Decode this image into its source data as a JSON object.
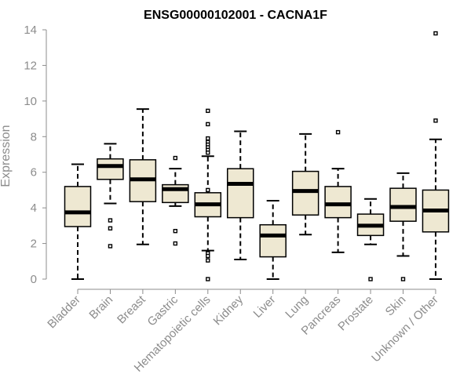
{
  "chart_data": {
    "type": "boxplot",
    "title": "ENSG00000102001 - CACNA1F",
    "xlabel": "",
    "ylabel": "Expression",
    "ylim": [
      0,
      14
    ],
    "yticks": [
      "0",
      "2",
      "4",
      "6",
      "8",
      "10",
      "12",
      "14"
    ],
    "box_color": "#eee8d2",
    "categories": [
      "Bladder",
      "Brain",
      "Breast",
      "Gastric",
      "Hematopoietic cells",
      "Kidney",
      "Liver",
      "Lung",
      "Pancreas",
      "Prostate",
      "Skin",
      "Unknown / Other"
    ],
    "boxes": [
      {
        "min": 0.0,
        "q1": 2.95,
        "median": 3.75,
        "q3": 5.2,
        "max": 6.45,
        "outliers": []
      },
      {
        "min": 4.25,
        "q1": 5.6,
        "median": 6.35,
        "q3": 6.75,
        "max": 7.6,
        "outliers": [
          3.3,
          2.85,
          1.85
        ]
      },
      {
        "min": 1.95,
        "q1": 4.35,
        "median": 5.6,
        "q3": 6.7,
        "max": 9.55,
        "outliers": []
      },
      {
        "min": 4.1,
        "q1": 4.3,
        "median": 5.05,
        "q3": 5.3,
        "max": 6.2,
        "outliers": [
          6.8,
          2.7,
          2.0
        ]
      },
      {
        "min": 1.6,
        "q1": 3.5,
        "median": 4.2,
        "q3": 4.85,
        "max": 6.9,
        "outliers": [
          9.45,
          8.7,
          7.9,
          7.7,
          7.55,
          7.4,
          7.25,
          7.1,
          5.0,
          1.45,
          1.3,
          1.05,
          0.0
        ]
      },
      {
        "min": 1.1,
        "q1": 3.45,
        "median": 5.35,
        "q3": 6.2,
        "max": 8.3,
        "outliers": []
      },
      {
        "min": 0.0,
        "q1": 1.25,
        "median": 2.45,
        "q3": 3.05,
        "max": 4.4,
        "outliers": []
      },
      {
        "min": 2.5,
        "q1": 3.6,
        "median": 4.95,
        "q3": 6.05,
        "max": 8.15,
        "outliers": []
      },
      {
        "min": 1.5,
        "q1": 3.45,
        "median": 4.2,
        "q3": 5.2,
        "max": 6.2,
        "outliers": [
          8.25
        ]
      },
      {
        "min": 1.95,
        "q1": 2.45,
        "median": 3.0,
        "q3": 3.65,
        "max": 4.5,
        "outliers": [
          0.0
        ]
      },
      {
        "min": 1.3,
        "q1": 3.25,
        "median": 4.05,
        "q3": 5.1,
        "max": 5.95,
        "outliers": [
          0.0
        ]
      },
      {
        "min": 0.0,
        "q1": 2.65,
        "median": 3.85,
        "q3": 5.0,
        "max": 7.85,
        "outliers": [
          13.8,
          8.9
        ]
      }
    ]
  }
}
